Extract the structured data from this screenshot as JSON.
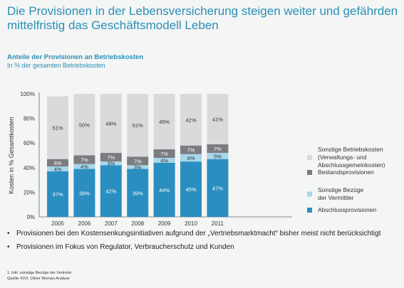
{
  "headline": "Die Provisionen in der Lebensversicherung steigen weiter und gefährden mittelfristig das Geschäftsmodell Leben",
  "colors": {
    "accent": "#2a8fb5",
    "sonstige_betriebskosten": "#d9dadc",
    "bestandsprovisionen": "#7b7c80",
    "sonstige_bezuege": "#a7d7ea",
    "abschlussprovisionen": "#2a8fc0"
  },
  "chart_data": {
    "type": "bar",
    "stacked": true,
    "title": "Anteile der Provisionen an Betriebskosten",
    "subtitle": "In % der gesamten Betriebskosten",
    "xlabel": "",
    "ylabel": "Kosten in % Gesamtkosten",
    "ylim": [
      0,
      100
    ],
    "yticks": [
      "0%",
      "20%",
      "40%",
      "60%",
      "80%",
      "100%"
    ],
    "grid": false,
    "legend_position": "right",
    "categories": [
      "2005",
      "2006",
      "2007",
      "2008",
      "2009",
      "2010",
      "2011"
    ],
    "series": [
      {
        "name": "Abschlussprovisionen",
        "values": [
          37,
          39,
          42,
          39,
          44,
          45,
          47
        ],
        "labels": [
          "37%",
          "39%",
          "42%",
          "39%",
          "44%",
          "45%",
          "47%"
        ],
        "color": "#2a8fc0"
      },
      {
        "name": "Sonstige Bezüge der Vermittler",
        "values": [
          4,
          4,
          3,
          3,
          4,
          6,
          5
        ],
        "labels": [
          "4%",
          "4%",
          "3%",
          "3%",
          "4%",
          "6%",
          "5%"
        ],
        "color": "#a7d7ea"
      },
      {
        "name": "Bestandsprovisionen",
        "values": [
          6,
          7,
          7,
          7,
          7,
          7,
          7
        ],
        "labels": [
          "6%",
          "7%",
          "7%",
          "7%",
          "7%",
          "7%",
          "7%"
        ],
        "color": "#7b7c80"
      },
      {
        "name": "Sonstige Betriebskosten (Verwaltungs- und Abschlussgemeinkosten)",
        "values": [
          51,
          50,
          48,
          51,
          45,
          42,
          41
        ],
        "labels": [
          "51%",
          "50%",
          "48%",
          "51%",
          "45%",
          "42%",
          "41%"
        ],
        "color": "#d9dadc"
      }
    ],
    "legend": [
      {
        "lines": [
          "Sonstige Betriebskosten",
          "(Verwaltungs- und",
          "Abschlussgemeinkosten)"
        ],
        "color": "#d9dadc"
      },
      {
        "lines": [
          "Bestandsprovisionen"
        ],
        "color": "#7b7c80"
      },
      {
        "lines": [
          "Sonstige Bezüge",
          "der Vermittler"
        ],
        "color": "#a7d7ea"
      },
      {
        "lines": [
          "Abschlussprovisionen"
        ],
        "color": "#2a8fc0"
      }
    ]
  },
  "bullets": [
    "Provisionen bei den Kostensenkungsinitiativen aufgrund der „Vertriebsmarktmacht“ bisher meist nicht berücksichtigt",
    "Provisionen im Fokus von Regulator, Verbraucherschutz und Kunden"
  ],
  "bullet_symbol": "•",
  "footnotes": [
    "1.  Inkl. sonstige Bezüge der Vertreter",
    "Quelle: KIVI, Oliver Wyman Analyse"
  ]
}
